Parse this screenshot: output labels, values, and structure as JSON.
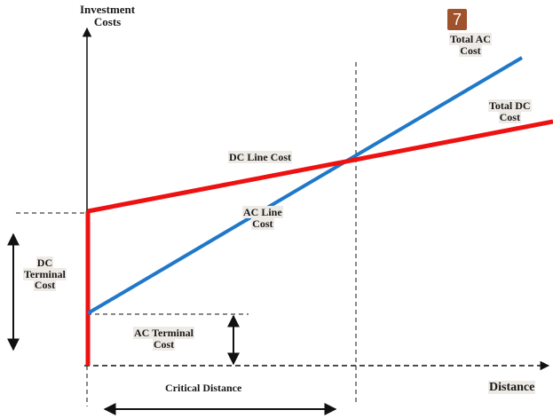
{
  "badge": "7",
  "labels": {
    "y_axis_line1": "Investment",
    "y_axis_line2": "Costs",
    "total_ac_line1": "Total AC",
    "total_ac_line2": "Cost",
    "total_dc_line1": "Total DC",
    "total_dc_line2": "Cost",
    "dc_line_cost": "DC Line Cost",
    "ac_line_line1": "AC Line",
    "ac_line_line2": "Cost",
    "dc_terminal_line1": "DC",
    "dc_terminal_line2": "Terminal",
    "dc_terminal_line3": "Cost",
    "ac_terminal_line1": "AC Terminal",
    "ac_terminal_line2": "Cost",
    "critical_distance": "Critical Distance",
    "x_axis": "Distance"
  },
  "colors": {
    "ac_line": "#1f78c8",
    "dc_line": "#ee1111",
    "axis": "#111111"
  }
}
